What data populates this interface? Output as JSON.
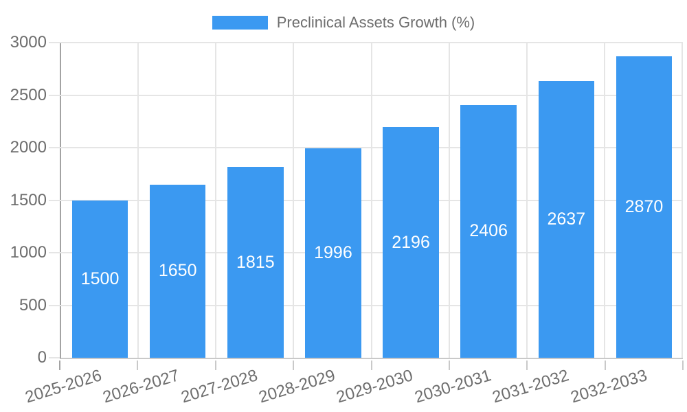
{
  "colors": {
    "bar": "#3b99f1",
    "grid": "#e5e5e5",
    "axis_line": "#a3a3a3",
    "baseline": "#c9c9c9",
    "tick_text": "#6e6e6e",
    "value_text": "#ffffff",
    "background": "#ffffff"
  },
  "chart_data": {
    "type": "bar",
    "legend": "Preclinical Assets Growth (%)",
    "categories": [
      "2025-2026",
      "2026-2027",
      "2027-2028",
      "2028-2029",
      "2029-2030",
      "2030-2031",
      "2031-2032",
      "2032-2033"
    ],
    "values": [
      1500,
      1650,
      1815,
      1996,
      2196,
      2406,
      2637,
      2870
    ],
    "title": "",
    "xlabel": "",
    "ylabel": "",
    "ylim": [
      0,
      3000
    ],
    "yticks": [
      0,
      500,
      1000,
      1500,
      2000,
      2500,
      3000
    ],
    "grid": true,
    "legend_position": "top-center",
    "value_labels": "inside-center-white",
    "x_label_rotation_deg": -17
  }
}
